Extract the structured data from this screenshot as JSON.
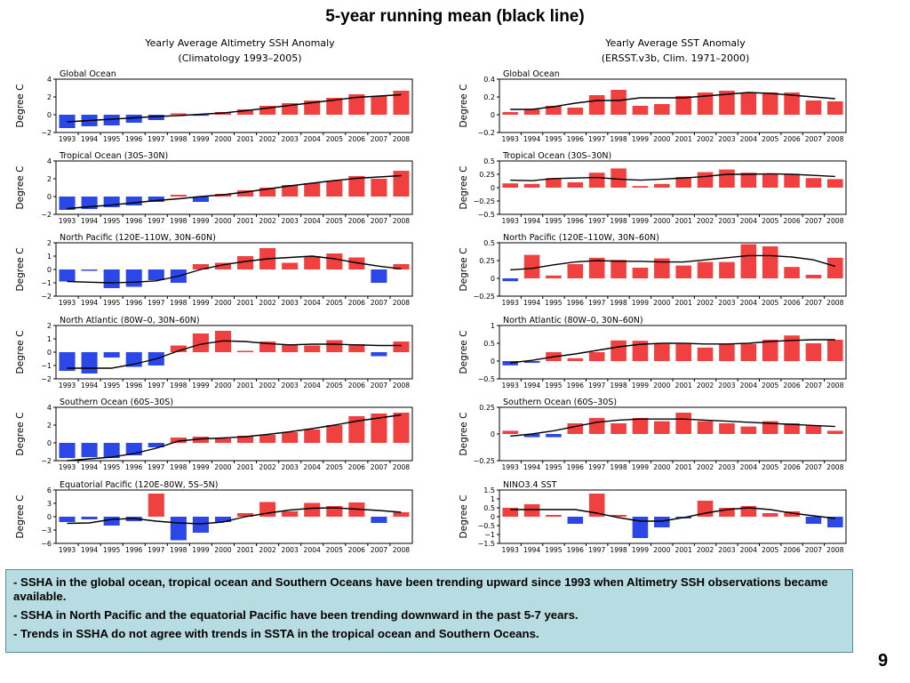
{
  "slide_title": "5-year running mean (black line)",
  "left_column": {
    "title_line1": "Yearly Average Altimetry SSH Anomaly",
    "title_line2": "(Climatology 1993–2005)"
  },
  "right_column": {
    "title_line1": "Yearly Average SST Anomaly",
    "title_line2": "(ERSST.v3b, Clim. 1971–2000)"
  },
  "colors": {
    "positive_bar": "#f04040",
    "negative_bar": "#2b47e8",
    "running_mean": "#000000"
  },
  "chart_data": [
    {
      "type": "bar",
      "panel": "Global Ocean",
      "ylabel": "Degree C",
      "column": "left",
      "categories": [
        "1993",
        "1994",
        "1995",
        "1996",
        "1997",
        "1998",
        "1999",
        "2000",
        "2001",
        "2002",
        "2003",
        "2004",
        "2005",
        "2006",
        "2007",
        "2008"
      ],
      "ylim": [
        -2,
        4
      ],
      "yticks": [
        -2,
        0,
        2,
        4
      ],
      "yticklabels": [
        "−2",
        "0",
        "2",
        "4"
      ],
      "values": [
        -1.5,
        -1.3,
        -1.2,
        -0.9,
        -0.6,
        0.15,
        -0.1,
        0.3,
        0.6,
        1.0,
        1.3,
        1.6,
        1.9,
        2.3,
        2.1,
        2.7
      ],
      "mean": [
        -0.8,
        -0.65,
        -0.5,
        -0.35,
        -0.2,
        -0.1,
        0.05,
        0.2,
        0.45,
        0.75,
        1.05,
        1.35,
        1.65,
        1.95,
        2.1,
        2.25
      ]
    },
    {
      "type": "bar",
      "panel": "Tropical Ocean (30S–30N)",
      "ylabel": "Degree C",
      "column": "left",
      "categories": [
        "1993",
        "1994",
        "1995",
        "1996",
        "1997",
        "1998",
        "1999",
        "2000",
        "2001",
        "2002",
        "2003",
        "2004",
        "2005",
        "2006",
        "2007",
        "2008"
      ],
      "ylim": [
        -2,
        4
      ],
      "yticks": [
        -2,
        0,
        2,
        4
      ],
      "yticklabels": [
        "−2",
        "0",
        "2",
        "4"
      ],
      "values": [
        -1.5,
        -1.4,
        -1.2,
        -1.0,
        -0.6,
        0.2,
        -0.6,
        0.3,
        0.7,
        1.0,
        1.3,
        1.5,
        1.8,
        2.3,
        2.0,
        2.9
      ],
      "mean": [
        -1.35,
        -1.15,
        -0.95,
        -0.7,
        -0.45,
        -0.25,
        0.0,
        0.2,
        0.5,
        0.85,
        1.2,
        1.5,
        1.8,
        2.05,
        2.2,
        2.35
      ]
    },
    {
      "type": "bar",
      "panel": "North Pacific (120E–110W, 30N–60N)",
      "ylabel": "Degree C",
      "column": "left",
      "categories": [
        "1993",
        "1994",
        "1995",
        "1996",
        "1997",
        "1998",
        "1999",
        "2000",
        "2001",
        "2002",
        "2003",
        "2004",
        "2005",
        "2006",
        "2007",
        "2008"
      ],
      "ylim": [
        -2,
        2
      ],
      "yticks": [
        -2,
        -1,
        0,
        1,
        2
      ],
      "yticklabels": [
        "−2",
        "−1",
        "0",
        "1",
        "2"
      ],
      "values": [
        -0.9,
        -0.1,
        -1.4,
        -1.3,
        -0.8,
        -1.0,
        0.4,
        0.5,
        1.0,
        1.6,
        0.5,
        1.0,
        1.2,
        0.9,
        -1.0,
        0.4
      ],
      "mean": [
        -0.9,
        -0.95,
        -1.0,
        -0.95,
        -0.85,
        -0.5,
        0.0,
        0.35,
        0.6,
        0.8,
        0.9,
        1.0,
        0.8,
        0.5,
        0.25,
        0.05
      ]
    },
    {
      "type": "bar",
      "panel": "North Atlantic (80W–0, 30N–60N)",
      "ylabel": "Degree C",
      "column": "left",
      "categories": [
        "1993",
        "1994",
        "1995",
        "1996",
        "1997",
        "1998",
        "1999",
        "2000",
        "2001",
        "2002",
        "2003",
        "2004",
        "2005",
        "2006",
        "2007",
        "2008"
      ],
      "ylim": [
        -2,
        2
      ],
      "yticks": [
        -2,
        -1,
        0,
        1,
        2
      ],
      "yticklabels": [
        "−2",
        "−1",
        "0",
        "1",
        "2"
      ],
      "values": [
        -1.4,
        -1.6,
        -0.4,
        -1.1,
        -1.0,
        0.5,
        1.4,
        1.6,
        0.1,
        0.8,
        0.6,
        0.5,
        0.9,
        0.6,
        -0.3,
        0.8
      ],
      "mean": [
        -1.2,
        -1.2,
        -1.2,
        -0.9,
        -0.5,
        0.1,
        0.6,
        0.85,
        0.8,
        0.65,
        0.55,
        0.6,
        0.6,
        0.55,
        0.5,
        0.5
      ]
    },
    {
      "type": "bar",
      "panel": "Southern Ocean (60S–30S)",
      "ylabel": "Degree C",
      "column": "left",
      "categories": [
        "1993",
        "1994",
        "1995",
        "1996",
        "1997",
        "1998",
        "1999",
        "2000",
        "2001",
        "2002",
        "2003",
        "2004",
        "2005",
        "2006",
        "2007",
        "2008"
      ],
      "ylim": [
        -2,
        4
      ],
      "yticks": [
        -2,
        0,
        2,
        4
      ],
      "yticklabels": [
        "−2",
        "0",
        "2",
        "4"
      ],
      "values": [
        -1.7,
        -1.6,
        -1.7,
        -1.4,
        -0.5,
        0.6,
        0.7,
        0.5,
        0.8,
        0.9,
        1.2,
        1.5,
        2.0,
        3.0,
        3.3,
        3.4
      ],
      "mean": [
        -2.0,
        -1.8,
        -1.6,
        -1.2,
        -0.6,
        0.2,
        0.45,
        0.55,
        0.7,
        0.95,
        1.25,
        1.6,
        2.0,
        2.45,
        2.8,
        3.15
      ]
    },
    {
      "type": "bar",
      "panel": "Equatorial Pacific (120E–80W, 5S–5N)",
      "ylabel": "Degree C",
      "column": "left",
      "categories": [
        "1993",
        "1994",
        "1995",
        "1996",
        "1997",
        "1998",
        "1999",
        "2000",
        "2001",
        "2002",
        "2003",
        "2004",
        "2005",
        "2006",
        "2007",
        "2008"
      ],
      "ylim": [
        -6,
        6
      ],
      "yticks": [
        -6,
        -3,
        0,
        3,
        6
      ],
      "yticklabels": [
        "−6",
        "−3",
        "0",
        "3",
        "6"
      ],
      "values": [
        -1.2,
        -0.6,
        -2.0,
        -1.0,
        5.2,
        -5.3,
        -3.6,
        -1.2,
        0.8,
        3.3,
        1.2,
        3.1,
        2.4,
        3.2,
        -1.4,
        1.0
      ],
      "mean": [
        -1.5,
        -1.4,
        -0.6,
        -0.4,
        -1.0,
        -1.4,
        -1.6,
        -1.2,
        0.0,
        0.8,
        1.5,
        1.9,
        2.0,
        1.7,
        1.4,
        1.0
      ]
    },
    {
      "type": "bar",
      "panel": "Global Ocean",
      "ylabel": "Degree C",
      "column": "right",
      "categories": [
        "1993",
        "1994",
        "1995",
        "1996",
        "1997",
        "1998",
        "1999",
        "2000",
        "2001",
        "2002",
        "2003",
        "2004",
        "2005",
        "2006",
        "2007",
        "2008"
      ],
      "ylim": [
        -0.2,
        0.4
      ],
      "yticks": [
        -0.2,
        0,
        0.2,
        0.4
      ],
      "yticklabels": [
        "−0.2",
        "0",
        "0.2",
        "0.4"
      ],
      "values": [
        0.03,
        0.06,
        0.1,
        0.08,
        0.22,
        0.28,
        0.1,
        0.12,
        0.21,
        0.25,
        0.27,
        0.25,
        0.25,
        0.25,
        0.16,
        0.15
      ],
      "mean": [
        0.06,
        0.06,
        0.09,
        0.13,
        0.16,
        0.16,
        0.19,
        0.19,
        0.19,
        0.21,
        0.23,
        0.25,
        0.24,
        0.22,
        0.2,
        0.18
      ]
    },
    {
      "type": "bar",
      "panel": "Tropical Ocean (30S–30N)",
      "ylabel": "Degree C",
      "column": "right",
      "categories": [
        "1993",
        "1994",
        "1995",
        "1996",
        "1997",
        "1998",
        "1999",
        "2000",
        "2001",
        "2002",
        "2003",
        "2004",
        "2005",
        "2006",
        "2007",
        "2008"
      ],
      "ylim": [
        -0.5,
        0.5
      ],
      "yticks": [
        -0.5,
        -0.25,
        0,
        0.25,
        0.5
      ],
      "yticklabels": [
        "−0.5",
        "−0.25",
        "0",
        "0.25",
        "0.5"
      ],
      "values": [
        0.08,
        0.07,
        0.18,
        0.1,
        0.28,
        0.36,
        0.03,
        0.07,
        0.2,
        0.29,
        0.34,
        0.28,
        0.26,
        0.26,
        0.18,
        0.16
      ],
      "mean": [
        0.14,
        0.13,
        0.17,
        0.18,
        0.19,
        0.16,
        0.14,
        0.16,
        0.18,
        0.21,
        0.25,
        0.25,
        0.26,
        0.25,
        0.23,
        0.21
      ]
    },
    {
      "type": "bar",
      "panel": "North Pacific (120E–110W, 30N–60N)",
      "ylabel": "Degree C",
      "column": "right",
      "categories": [
        "1993",
        "1994",
        "1995",
        "1996",
        "1997",
        "1998",
        "1999",
        "2000",
        "2001",
        "2002",
        "2003",
        "2004",
        "2005",
        "2006",
        "2007",
        "2008"
      ],
      "ylim": [
        -0.25,
        0.5
      ],
      "yticks": [
        -0.25,
        0,
        0.25,
        0.5
      ],
      "yticklabels": [
        "−0.25",
        "0",
        "0.25",
        "0.5"
      ],
      "values": [
        -0.04,
        0.33,
        0.04,
        0.2,
        0.29,
        0.26,
        0.15,
        0.28,
        0.18,
        0.23,
        0.23,
        0.48,
        0.45,
        0.16,
        0.05,
        0.29
      ],
      "mean": [
        0.12,
        0.14,
        0.19,
        0.23,
        0.25,
        0.24,
        0.24,
        0.23,
        0.23,
        0.26,
        0.29,
        0.32,
        0.32,
        0.3,
        0.26,
        0.17
      ]
    },
    {
      "type": "bar",
      "panel": "North Atlantic (80W–0, 30N–60N)",
      "ylabel": "Degree C",
      "column": "right",
      "categories": [
        "1993",
        "1994",
        "1995",
        "1996",
        "1997",
        "1998",
        "1999",
        "2000",
        "2001",
        "2002",
        "2003",
        "2004",
        "2005",
        "2006",
        "2007",
        "2008"
      ],
      "ylim": [
        -0.5,
        1
      ],
      "yticks": [
        -0.5,
        0,
        0.5,
        1
      ],
      "yticklabels": [
        "−0.5",
        "0",
        "0.5",
        "1"
      ],
      "values": [
        -0.12,
        -0.05,
        0.25,
        0.08,
        0.25,
        0.58,
        0.57,
        0.48,
        0.48,
        0.38,
        0.48,
        0.48,
        0.6,
        0.72,
        0.5,
        0.6
      ],
      "mean": [
        -0.05,
        0.02,
        0.12,
        0.2,
        0.3,
        0.4,
        0.47,
        0.5,
        0.5,
        0.48,
        0.48,
        0.5,
        0.55,
        0.58,
        0.6,
        0.6
      ]
    },
    {
      "type": "bar",
      "panel": "Southern Ocean (60S–30S)",
      "ylabel": "Degree C",
      "column": "right",
      "categories": [
        "1993",
        "1994",
        "1995",
        "1996",
        "1997",
        "1998",
        "1999",
        "2000",
        "2001",
        "2002",
        "2003",
        "2004",
        "2005",
        "2006",
        "2007",
        "2008"
      ],
      "ylim": [
        -0.25,
        0.25
      ],
      "yticks": [
        -0.25,
        0,
        0.25
      ],
      "yticklabels": [
        "−0.25",
        "0",
        "0.25"
      ],
      "values": [
        0.03,
        -0.03,
        -0.03,
        0.1,
        0.15,
        0.1,
        0.15,
        0.12,
        0.2,
        0.12,
        0.1,
        0.07,
        0.12,
        0.1,
        0.08,
        0.03
      ],
      "mean": [
        -0.02,
        0.0,
        0.03,
        0.07,
        0.11,
        0.13,
        0.14,
        0.14,
        0.14,
        0.13,
        0.12,
        0.11,
        0.1,
        0.09,
        0.08,
        0.07
      ]
    },
    {
      "type": "bar",
      "panel": "NINO3.4 SST",
      "ylabel": "Degree C",
      "column": "right",
      "categories": [
        "1993",
        "1994",
        "1995",
        "1996",
        "1997",
        "1998",
        "1999",
        "2000",
        "2001",
        "2002",
        "2003",
        "2004",
        "2005",
        "2006",
        "2007",
        "2008"
      ],
      "ylim": [
        -1.5,
        1.5
      ],
      "yticks": [
        -1.5,
        -1,
        -0.5,
        0,
        0.5,
        1,
        1.5
      ],
      "yticklabels": [
        "−1.5",
        "−1",
        "−0.5",
        "0",
        "0.5",
        "1",
        "1.5"
      ],
      "values": [
        0.5,
        0.7,
        0.1,
        -0.4,
        1.3,
        0.1,
        -1.2,
        -0.6,
        -0.1,
        0.9,
        0.5,
        0.6,
        0.2,
        0.3,
        -0.4,
        -0.6
      ],
      "mean": [
        0.4,
        0.4,
        0.4,
        0.4,
        0.2,
        -0.05,
        -0.25,
        -0.25,
        -0.05,
        0.2,
        0.4,
        0.5,
        0.4,
        0.2,
        0.05,
        -0.1
      ]
    }
  ],
  "notes": [
    "- SSHA in the global ocean, tropical ocean and Southern Oceans have been trending upward since 1993 when Altimetry SSH observations became available.",
    "- SSHA in North Pacific and the equatorial Pacific have been trending downward in the past 5-7 years.",
    "- Trends in SSHA do not agree with trends in SSTA in the tropical ocean and Southern Oceans."
  ],
  "page_number": "9"
}
